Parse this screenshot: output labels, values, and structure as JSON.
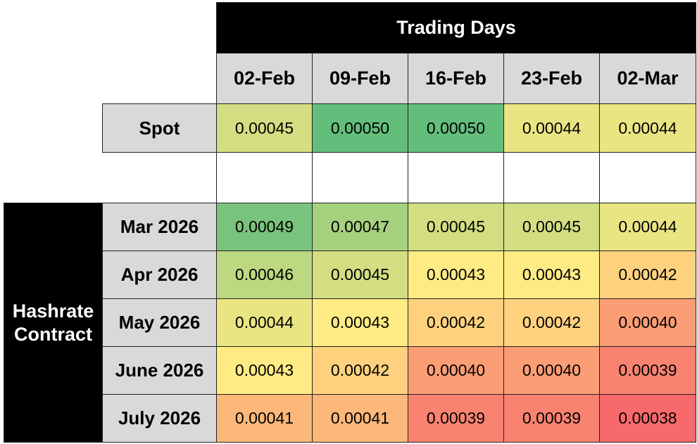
{
  "chart_data": {
    "type": "heatmap",
    "title": "Trading Days",
    "row_group_label": "Hashrate Contract",
    "columns": [
      "02-Feb",
      "09-Feb",
      "16-Feb",
      "23-Feb",
      "02-Mar"
    ],
    "spot": {
      "label": "Spot",
      "values": [
        "0.00045",
        "0.00050",
        "0.00050",
        "0.00044",
        "0.00044"
      ]
    },
    "rows": [
      {
        "label": "Mar 2026",
        "values": [
          "0.00049",
          "0.00047",
          "0.00045",
          "0.00045",
          "0.00044"
        ]
      },
      {
        "label": "Apr 2026",
        "values": [
          "0.00046",
          "0.00045",
          "0.00043",
          "0.00043",
          "0.00042"
        ]
      },
      {
        "label": "May 2026",
        "values": [
          "0.00044",
          "0.00043",
          "0.00042",
          "0.00042",
          "0.00040"
        ]
      },
      {
        "label": "June 2026",
        "values": [
          "0.00043",
          "0.00042",
          "0.00040",
          "0.00040",
          "0.00039"
        ]
      },
      {
        "label": "July 2026",
        "values": [
          "0.00041",
          "0.00041",
          "0.00039",
          "0.00039",
          "0.00038"
        ]
      }
    ],
    "color_scale": {
      "min": {
        "value": 0.00038,
        "color": "#F8696B"
      },
      "mid": {
        "value": 0.00043,
        "color": "#FFEB84"
      },
      "max": {
        "value": 0.0005,
        "color": "#63BE7B"
      }
    }
  }
}
